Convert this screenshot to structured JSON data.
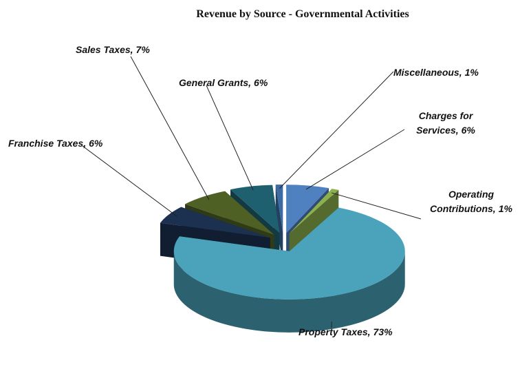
{
  "chart_data": {
    "type": "pie3d",
    "title": "Revenue by Source - Governmental Activities",
    "categories": [
      "Charges for Services,",
      "Operating Contributions,",
      "Property Taxes,",
      "Franchise Taxes,",
      "Sales Taxes,",
      "General Grants,",
      "Miscellaneous,"
    ],
    "values": [
      6,
      1,
      73,
      6,
      7,
      6,
      1
    ],
    "value_labels": [
      "6%",
      "1%",
      "73%",
      "6%",
      "7%",
      "6%",
      "1%"
    ],
    "colors": [
      "#4f80c0",
      "#8db04e",
      "#4aa3bb",
      "#1c3050",
      "#4e6024",
      "#1f6070",
      "#3c6aa2"
    ]
  }
}
